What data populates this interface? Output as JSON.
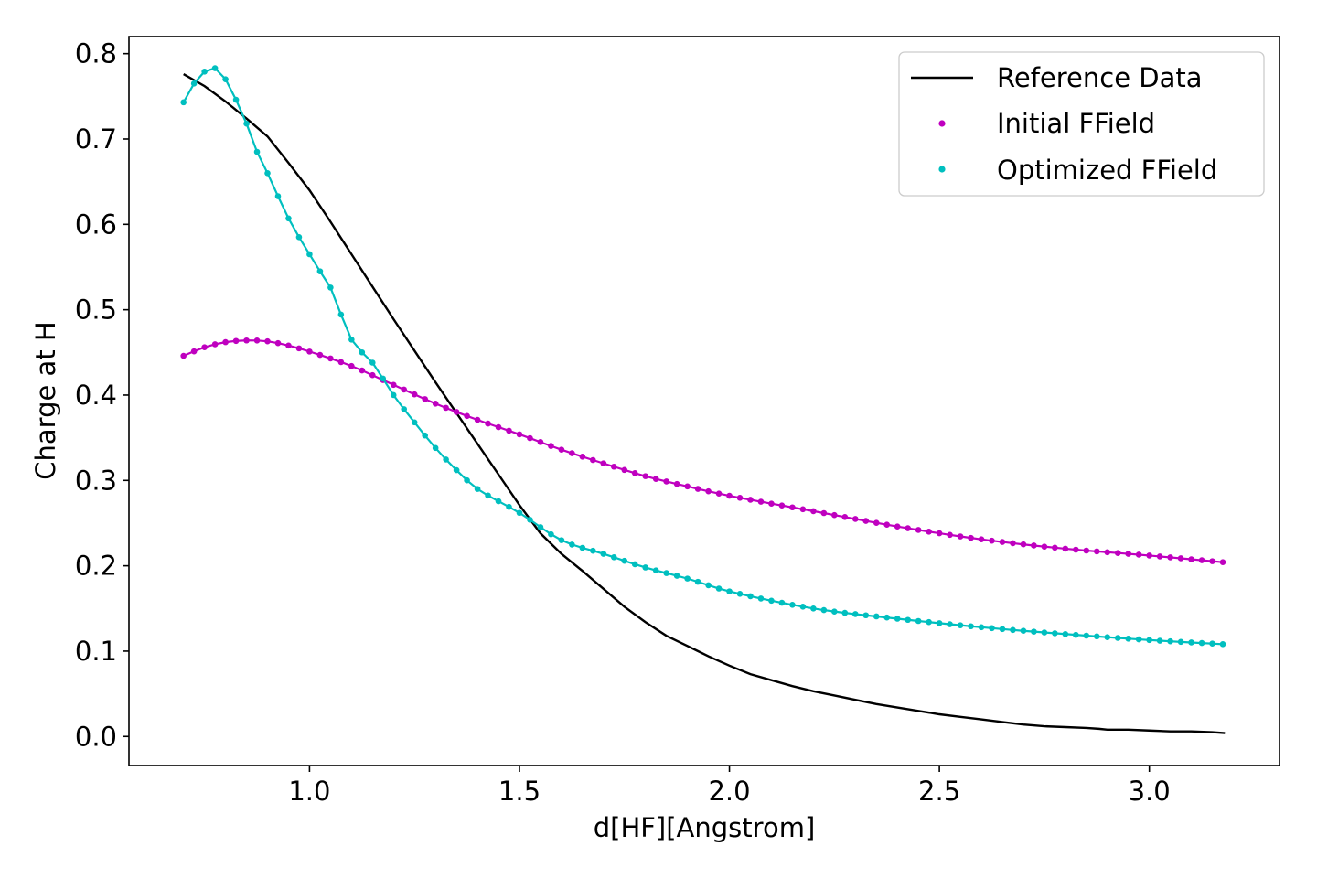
{
  "chart_data": {
    "type": "line",
    "xlabel": "d[HF][Angstrom]",
    "ylabel": "Charge at H",
    "xlim": [
      0.57,
      3.31
    ],
    "ylim": [
      -0.034,
      0.82
    ],
    "xticks": [
      1.0,
      1.5,
      2.0,
      2.5,
      3.0
    ],
    "xtick_labels": [
      "1.0",
      "1.5",
      "2.0",
      "2.5",
      "3.0"
    ],
    "yticks": [
      0.0,
      0.1,
      0.2,
      0.3,
      0.4,
      0.5,
      0.6,
      0.7,
      0.8
    ],
    "ytick_labels": [
      "0.0",
      "0.1",
      "0.2",
      "0.3",
      "0.4",
      "0.5",
      "0.6",
      "0.7",
      "0.8"
    ],
    "grid": false,
    "legend_position": "top-right",
    "series": [
      {
        "name": "Reference Data",
        "style": "line",
        "color": "#000000",
        "x": [
          0.7,
          0.75,
          0.8,
          0.85,
          0.9,
          0.95,
          1.0,
          1.05,
          1.1,
          1.15,
          1.2,
          1.25,
          1.3,
          1.35,
          1.4,
          1.45,
          1.5,
          1.55,
          1.6,
          1.65,
          1.7,
          1.75,
          1.8,
          1.85,
          1.9,
          1.95,
          2.0,
          2.05,
          2.1,
          2.15,
          2.2,
          2.25,
          2.3,
          2.35,
          2.4,
          2.45,
          2.5,
          2.55,
          2.6,
          2.65,
          2.7,
          2.75,
          2.8,
          2.85,
          2.88,
          2.9,
          2.95,
          3.0,
          3.05,
          3.1,
          3.15,
          3.18
        ],
        "y": [
          0.776,
          0.762,
          0.744,
          0.724,
          0.703,
          0.672,
          0.64,
          0.603,
          0.565,
          0.527,
          0.489,
          0.452,
          0.415,
          0.379,
          0.343,
          0.307,
          0.271,
          0.238,
          0.214,
          0.194,
          0.173,
          0.152,
          0.134,
          0.118,
          0.106,
          0.094,
          0.083,
          0.073,
          0.066,
          0.059,
          0.053,
          0.048,
          0.043,
          0.038,
          0.034,
          0.03,
          0.026,
          0.023,
          0.02,
          0.017,
          0.014,
          0.012,
          0.011,
          0.01,
          0.009,
          0.008,
          0.008,
          0.007,
          0.006,
          0.006,
          0.005,
          0.004
        ]
      },
      {
        "name": "Initial FField",
        "style": "line-dots",
        "color": "#bf00bf",
        "formula": "0.452 + 0.28*(x-0.7)*exp(-(x-0.7)/0.25) - 0.01 + 0.0 ; sampled",
        "x_start": 0.7,
        "x_end": 3.18,
        "x_step": 0.025,
        "anchors_x": [
          0.7,
          0.75,
          0.8,
          0.85,
          0.9,
          0.95,
          1.0,
          1.1,
          1.2,
          1.3,
          1.4,
          1.5,
          1.6,
          1.7,
          1.8,
          1.9,
          2.0,
          2.2,
          2.4,
          2.6,
          2.8,
          3.0,
          3.18
        ],
        "anchors_y": [
          0.446,
          0.456,
          0.462,
          0.464,
          0.463,
          0.458,
          0.451,
          0.434,
          0.412,
          0.39,
          0.371,
          0.354,
          0.336,
          0.32,
          0.305,
          0.293,
          0.282,
          0.264,
          0.246,
          0.231,
          0.22,
          0.212,
          0.204
        ]
      },
      {
        "name": "Optimized FField",
        "style": "line-dots",
        "color": "#00bfbf",
        "x_start": 0.7,
        "x_end": 3.18,
        "x_step": 0.025,
        "anchors_x": [
          0.7,
          0.725,
          0.75,
          0.775,
          0.8,
          0.825,
          0.85,
          0.875,
          0.9,
          0.925,
          0.95,
          0.975,
          1.0,
          1.025,
          1.05,
          1.1,
          1.15,
          1.2,
          1.25,
          1.3,
          1.35,
          1.4,
          1.5,
          1.6,
          1.7,
          1.8,
          1.9,
          2.0,
          2.2,
          2.4,
          2.6,
          2.8,
          3.0,
          3.18
        ],
        "anchors_y": [
          0.743,
          0.765,
          0.779,
          0.783,
          0.77,
          0.746,
          0.718,
          0.685,
          0.66,
          0.633,
          0.607,
          0.585,
          0.565,
          0.545,
          0.526,
          0.465,
          0.438,
          0.4,
          0.368,
          0.338,
          0.312,
          0.29,
          0.262,
          0.23,
          0.214,
          0.198,
          0.185,
          0.17,
          0.15,
          0.138,
          0.128,
          0.12,
          0.113,
          0.108
        ]
      }
    ]
  }
}
